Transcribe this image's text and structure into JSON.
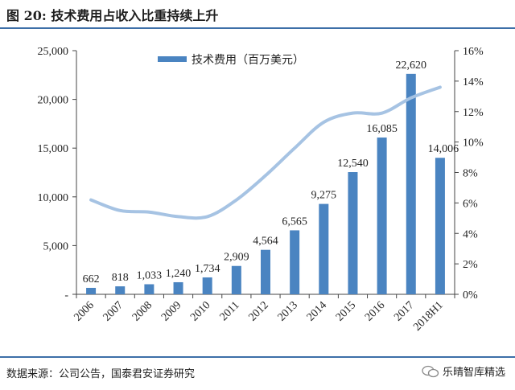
{
  "header": {
    "title": "图 20:  技术费用占收入比重持续上升"
  },
  "footer": {
    "source": "数据来源：公司公告，国泰君安证券研究",
    "watermark": "乐晴智库精选"
  },
  "chart_data": {
    "type": "bar",
    "title": "图 20:  技术费用占收入比重持续上升",
    "categories": [
      "2006",
      "2007",
      "2008",
      "2009",
      "2010",
      "2011",
      "2012",
      "2013",
      "2014",
      "2015",
      "2016",
      "2017",
      "2018H1"
    ],
    "series": [
      {
        "name": "技术费用（百万美元）",
        "type": "bar",
        "axis": "left",
        "color": "#4a84c1",
        "values": [
          662,
          818,
          1033,
          1240,
          1734,
          2909,
          4564,
          6565,
          9275,
          12540,
          16085,
          22620,
          14006
        ],
        "labels": [
          "662",
          "818",
          "1,033",
          "1,240",
          "1,734",
          "2,909",
          "4,564",
          "6,565",
          "9,275",
          "12,540",
          "16,085",
          "22,620",
          "14,006"
        ]
      },
      {
        "name": "技术费用占收入比重",
        "type": "line",
        "axis": "right",
        "color": "#a6c3e3",
        "values": [
          6.2,
          5.5,
          5.4,
          5.1,
          5.1,
          6.2,
          7.8,
          9.6,
          11.3,
          11.9,
          11.9,
          12.9,
          13.6
        ]
      }
    ],
    "legend": {
      "label": "技术费用（百万美元）",
      "position": "top-center"
    },
    "yaxis_left": {
      "min": 0,
      "max": 25000,
      "ticks": [
        "-",
        "5,000",
        "10,000",
        "15,000",
        "20,000",
        "25,000"
      ]
    },
    "yaxis_right": {
      "min": 0,
      "max": 16,
      "ticks": [
        "0%",
        "2%",
        "4%",
        "6%",
        "8%",
        "10%",
        "12%",
        "14%",
        "16%"
      ]
    },
    "xlabel": "",
    "ylabel": ""
  }
}
